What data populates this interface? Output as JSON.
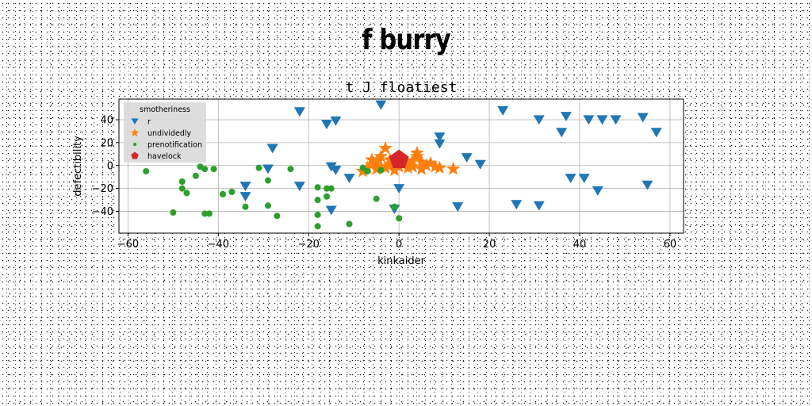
{
  "figure": {
    "suptitle": "f burry"
  },
  "chart_data": {
    "type": "scatter",
    "title": "t J floatiest",
    "xlabel": "kinkaider",
    "ylabel": "defectibility",
    "xlim": [
      -62,
      63
    ],
    "ylim": [
      -59,
      58
    ],
    "xticks": [
      -60,
      -40,
      -20,
      0,
      20,
      40,
      60
    ],
    "yticks": [
      -40,
      -20,
      0,
      20,
      40
    ],
    "grid": true,
    "legend": {
      "title": "smotheriness",
      "placement": "top-left"
    },
    "series": [
      {
        "name": "r",
        "marker": "triangle-down",
        "color": "#1f77b4",
        "points": [
          [
            -4,
            53
          ],
          [
            -22,
            47
          ],
          [
            -16,
            36
          ],
          [
            -14,
            39
          ],
          [
            -28,
            15
          ],
          [
            -34,
            -18
          ],
          [
            -34,
            -27
          ],
          [
            -22,
            -18
          ],
          [
            -15,
            -1
          ],
          [
            -14,
            -4
          ],
          [
            -11,
            -11
          ],
          [
            -15,
            -39
          ],
          [
            -1,
            -38
          ],
          [
            0,
            -20
          ],
          [
            -29,
            -3
          ],
          [
            9,
            25
          ],
          [
            9,
            19
          ],
          [
            15,
            7
          ],
          [
            18,
            1
          ],
          [
            13,
            -36
          ],
          [
            23,
            48
          ],
          [
            31,
            40
          ],
          [
            36,
            29
          ],
          [
            37,
            43
          ],
          [
            42,
            40
          ],
          [
            45,
            40
          ],
          [
            48,
            40
          ],
          [
            54,
            42
          ],
          [
            57,
            29
          ],
          [
            38,
            -11
          ],
          [
            41,
            -11
          ],
          [
            44,
            -22
          ],
          [
            55,
            -17
          ],
          [
            26,
            -34
          ],
          [
            31,
            -35
          ]
        ]
      },
      {
        "name": "undividedly",
        "marker": "star",
        "color": "#ff7f0e",
        "points": [
          [
            -3,
            15
          ],
          [
            -4,
            8
          ],
          [
            -5,
            3
          ],
          [
            -6,
            5
          ],
          [
            -7,
            -2
          ],
          [
            -8,
            -5
          ],
          [
            -2,
            1
          ],
          [
            -3,
            -2
          ],
          [
            -1,
            -4
          ],
          [
            -5,
            -3
          ],
          [
            1,
            4
          ],
          [
            2,
            2
          ],
          [
            3,
            -1
          ],
          [
            4,
            8
          ],
          [
            4,
            11
          ],
          [
            5,
            3
          ],
          [
            6,
            0
          ],
          [
            7,
            2
          ],
          [
            8,
            -1
          ],
          [
            9,
            -2
          ],
          [
            12,
            -3
          ],
          [
            -2,
            5
          ],
          [
            0,
            -1
          ],
          [
            -1,
            2
          ],
          [
            -4,
            -1
          ],
          [
            -6,
            1
          ],
          [
            2,
            -2
          ],
          [
            3,
            4
          ],
          [
            5,
            -3
          ]
        ]
      },
      {
        "name": "prenotification",
        "marker": "circle",
        "color": "#2ca02c",
        "points": [
          [
            -56,
            -5
          ],
          [
            -48,
            -14
          ],
          [
            -48,
            -20
          ],
          [
            -47,
            -24
          ],
          [
            -45,
            -9
          ],
          [
            -44,
            -1
          ],
          [
            -43,
            -3
          ],
          [
            -41,
            -3
          ],
          [
            -43,
            -42
          ],
          [
            -42,
            -42
          ],
          [
            -39,
            -25
          ],
          [
            -37,
            -23
          ],
          [
            -34,
            -36
          ],
          [
            -31,
            -2
          ],
          [
            -29,
            -13
          ],
          [
            -29,
            -35
          ],
          [
            -27,
            -44
          ],
          [
            -24,
            -3
          ],
          [
            -18,
            -19
          ],
          [
            -18,
            -30
          ],
          [
            -18,
            -43
          ],
          [
            -18,
            -53
          ],
          [
            -16,
            -20
          ],
          [
            -16,
            -27
          ],
          [
            -15,
            -20
          ],
          [
            -11,
            -51
          ],
          [
            -8,
            -2
          ],
          [
            -7,
            -5
          ],
          [
            -5,
            -29
          ],
          [
            -4,
            -4
          ],
          [
            -1,
            -36
          ],
          [
            0,
            -46
          ],
          [
            -50,
            -41
          ]
        ]
      },
      {
        "name": "havelock",
        "marker": "pentagon",
        "color": "#d62728",
        "points": [
          [
            0,
            5
          ]
        ]
      }
    ]
  }
}
